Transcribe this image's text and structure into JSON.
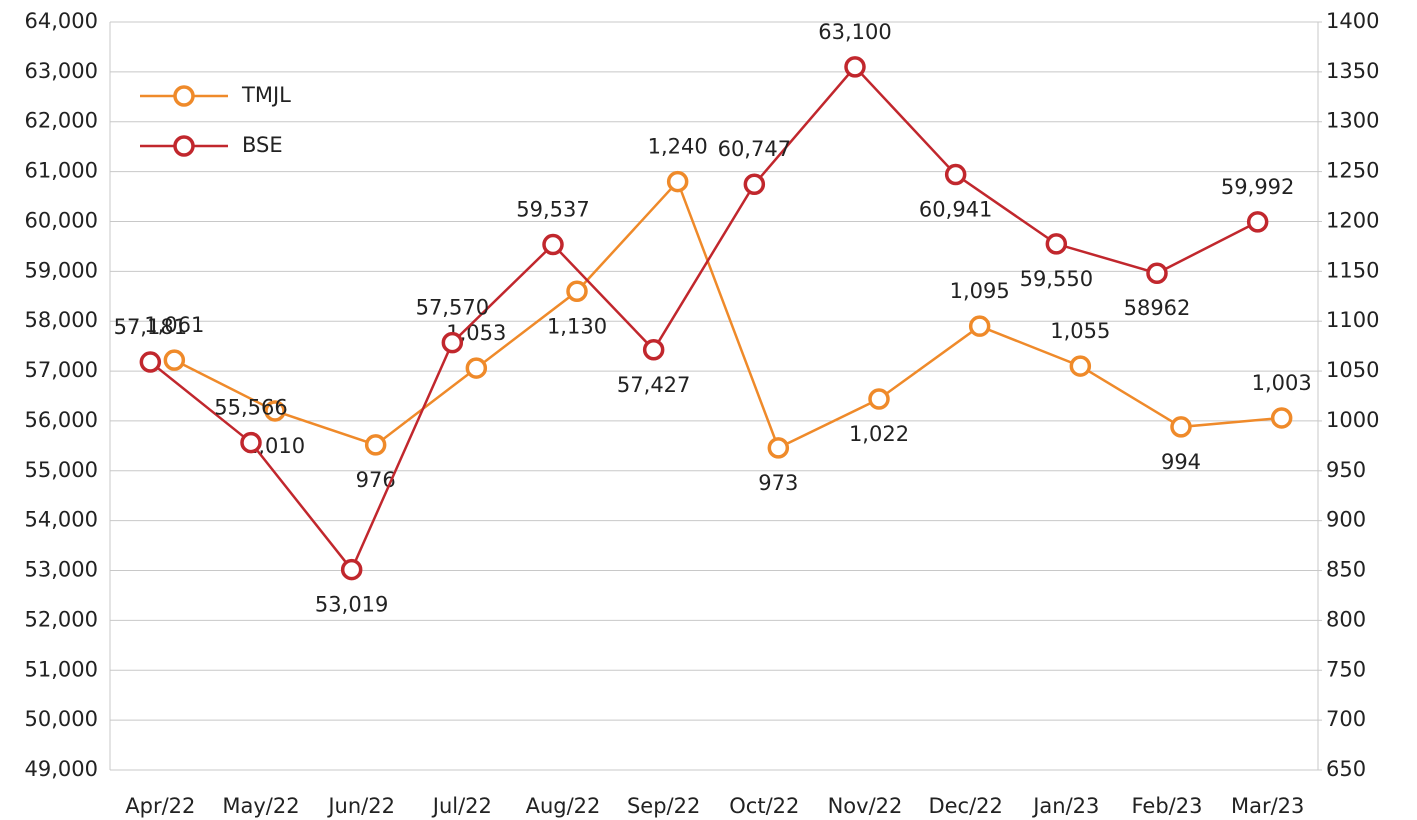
{
  "chart_data": {
    "type": "line",
    "categories": [
      "Apr/22",
      "May/22",
      "Jun/22",
      "Jul/22",
      "Aug/22",
      "Sep/22",
      "Oct/22",
      "Nov/22",
      "Dec/22",
      "Jan/23",
      "Feb/23",
      "Mar/23"
    ],
    "series": [
      {
        "name": "TMJL",
        "color": "#ef8a2a",
        "axis": "y2",
        "values": [
          1061,
          1010,
          976,
          1053,
          1130,
          1240,
          973,
          1022,
          1095,
          1055,
          994,
          1003
        ],
        "value_labels": [
          "1,061",
          "1,010",
          "976",
          "1,053",
          "1,130",
          "1,240",
          "973",
          "1,022",
          "1,095",
          "1,055",
          "994",
          "1,003"
        ]
      },
      {
        "name": "BSE",
        "color": "#c1272d",
        "values": [
          57181,
          55566,
          53019,
          57570,
          59537,
          57427,
          60747,
          63100,
          60941,
          59550,
          58962,
          59992
        ],
        "value_labels": [
          "57,181",
          "55,566",
          "53,019",
          "57,570",
          "59,537",
          "57,427",
          "60,747",
          "63,100",
          "60,941",
          "59,550",
          "58962",
          "59,992"
        ]
      }
    ],
    "ylim": [
      49000,
      64000
    ],
    "yticks": [
      {
        "value": 49000,
        "label": "49,000"
      },
      {
        "value": 50000,
        "label": "50,000"
      },
      {
        "value": 51000,
        "label": "51,000"
      },
      {
        "value": 52000,
        "label": "52,000"
      },
      {
        "value": 53000,
        "label": "53,000"
      },
      {
        "value": 54000,
        "label": "54,000"
      },
      {
        "value": 55000,
        "label": "55,000"
      },
      {
        "value": 56000,
        "label": "56,000"
      },
      {
        "value": 57000,
        "label": "57,000"
      },
      {
        "value": 58000,
        "label": "58,000"
      },
      {
        "value": 59000,
        "label": "59,000"
      },
      {
        "value": 60000,
        "label": "60,000"
      },
      {
        "value": 61000,
        "label": "61,000"
      },
      {
        "value": 62000,
        "label": "62,000"
      },
      {
        "value": 63000,
        "label": "63,000"
      },
      {
        "value": 64000,
        "label": "64,000"
      }
    ],
    "y2lim": [
      650,
      1400
    ],
    "y2ticks": [
      650,
      700,
      750,
      800,
      850,
      900,
      950,
      1000,
      1050,
      1100,
      1150,
      1200,
      1250,
      1300,
      1350,
      1400
    ],
    "grid": true,
    "legend": "upper left"
  }
}
